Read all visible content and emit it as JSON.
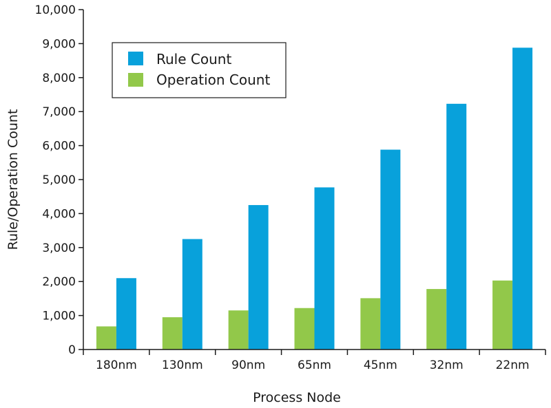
{
  "chart_data": {
    "type": "bar",
    "title": "",
    "xlabel": "Process Node",
    "ylabel": "Rule/Operation Count",
    "categories": [
      "180nm",
      "130nm",
      "90nm",
      "65nm",
      "45nm",
      "32nm",
      "22nm"
    ],
    "series": [
      {
        "name": "Operation Count",
        "color": "#92c84a",
        "values": [
          680,
          950,
          1150,
          1220,
          1510,
          1780,
          2030
        ]
      },
      {
        "name": "Rule Count",
        "color": "#08a1db",
        "values": [
          2100,
          3250,
          4250,
          4770,
          5880,
          7230,
          8880
        ]
      }
    ],
    "ylim": [
      0,
      10000
    ],
    "yticks": [
      0,
      1000,
      2000,
      3000,
      4000,
      5000,
      6000,
      7000,
      8000,
      9000,
      10000
    ],
    "ytick_labels": [
      "0",
      "1,000",
      "2,000",
      "3,000",
      "4,000",
      "5,000",
      "6,000",
      "7,000",
      "8,000",
      "9,000",
      "10,000"
    ],
    "grid": false,
    "legend": {
      "placement": "top-left",
      "entries": [
        "Rule Count",
        "Operation Count"
      ]
    }
  }
}
